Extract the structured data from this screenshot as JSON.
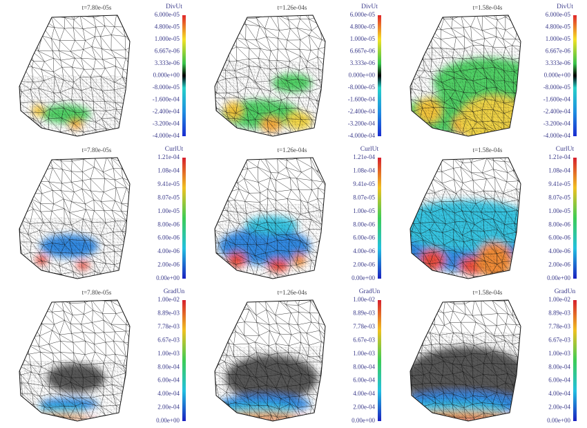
{
  "panels": {
    "times": [
      "t=7.80e-05s",
      "t=1.26e-04s",
      "t=1.58e-04s"
    ],
    "rows": [
      {
        "title": "DivUt",
        "ticks": [
          "6.000e-05",
          "4.800e-05",
          "1.000e-05",
          "6.667e-06",
          "3.333e-06",
          "0.000e+00",
          "-8.000e-05",
          "-1.600e-04",
          "-2.400e-04",
          "-3.200e-04",
          "-4.000e-04"
        ]
      },
      {
        "title": "CurlUt",
        "ticks": [
          "1.21e-04",
          "1.08e-04",
          "9.41e-05",
          "8.07e-05",
          "1.00e-05",
          "8.00e-06",
          "6.00e-06",
          "4.00e-06",
          "2.00e-06",
          "0.00e+00"
        ]
      },
      {
        "title": "GradUn",
        "ticks": [
          "1.00e-02",
          "8.89e-03",
          "7.78e-03",
          "6.67e-03",
          "1.00e-03",
          "8.00e-04",
          "6.00e-04",
          "4.00e-04",
          "2.00e-04",
          "0.00e+00"
        ]
      }
    ]
  }
}
